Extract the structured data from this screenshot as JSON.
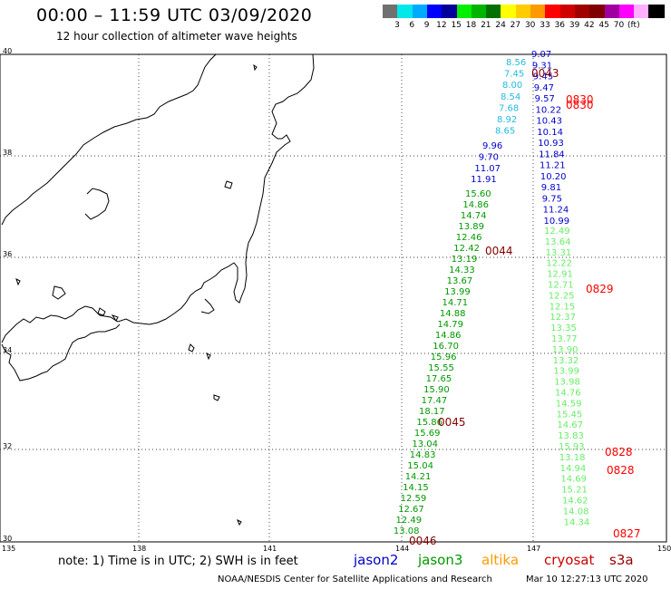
{
  "title": "00:00 – 11:59 UTC 03/09/2020",
  "subtitle": "12 hour collection of altimeter wave heights",
  "scale": {
    "unit": "(ft)",
    "colors": [
      "#707070",
      "#00e8e8",
      "#00aaff",
      "#0000ff",
      "#00009a",
      "#00ee00",
      "#00b400",
      "#007000",
      "#ffff00",
      "#ffcc00",
      "#ff9900",
      "#ff0000",
      "#d00000",
      "#a00000",
      "#800000",
      "#a000a0",
      "#ff00ff",
      "#ffb0ff",
      "#000000"
    ],
    "labels": [
      "3",
      "6",
      "9",
      "12",
      "15",
      "18",
      "21",
      "24",
      "27",
      "30",
      "33",
      "36",
      "39",
      "42",
      "45",
      "70"
    ]
  },
  "axes": {
    "lat_labels": [
      "40",
      "38",
      "36",
      "34",
      "32",
      "30"
    ],
    "lon_labels": [
      "135",
      "138",
      "141",
      "144",
      "147",
      "150"
    ]
  },
  "colors": {
    "jason2": "#0000cc",
    "jason3": "#009900",
    "altika": "#ff9900",
    "cryosat": "#cc0000",
    "s3a": "#990000",
    "altika_values": "#22bbdd",
    "track2_values": "#66ee66",
    "time_dark": "#880000",
    "time_red": "#ff0000"
  },
  "tracks": [
    {
      "name": "altika_values",
      "color": "#22bbdd",
      "values": [
        "8.56",
        "7.45",
        "8.00",
        "8.54",
        "7.68",
        "8.92",
        "8.65"
      ]
    },
    {
      "name": "jason2_upper",
      "color": "#0000cc",
      "values": [
        "9.96",
        "9.70",
        "11.07",
        "11.91"
      ]
    },
    {
      "name": "jason3_lower",
      "color": "#009900",
      "values": [
        "15.60",
        "14.86",
        "14.74",
        "13.89",
        "12.46",
        "12.42",
        "13.19",
        "14.33",
        "13.67",
        "13.99",
        "14.71",
        "14.88",
        "14.79",
        "14.86",
        "16.70",
        "15.96",
        "15.55",
        "17.65",
        "15.90",
        "17.47",
        "18.17",
        "15.86",
        "15.69",
        "13.04",
        "14.83",
        "15.04",
        "14.21",
        "14.15",
        "12.59",
        "12.67",
        "12.49",
        "13.08"
      ]
    },
    {
      "name": "jason2_right",
      "color": "#0000cc",
      "values": [
        "9.07",
        "9.31",
        "9.45",
        "9.47",
        "9.57",
        "10.22",
        "10.43",
        "10.14",
        "10.93",
        "11.84",
        "11.21",
        "10.20",
        "9.81",
        "9.75",
        "11.24",
        "10.99"
      ]
    },
    {
      "name": "green_right",
      "color": "#66ee66",
      "values": [
        "12.49",
        "13.64",
        "13.31",
        "12.22",
        "12.91",
        "12.71",
        "12.25",
        "12.15",
        "12.37",
        "13.35",
        "13.77",
        "13.90",
        "13.32",
        "13.99",
        "13.98",
        "14.76",
        "14.59",
        "15.45",
        "14.67",
        "13.83",
        "15.93",
        "13.18",
        "14.94",
        "14.69",
        "15.21",
        "14.62",
        "14.08",
        "14.34"
      ]
    }
  ],
  "times": [
    {
      "label": "0043",
      "color": "#880000"
    },
    {
      "label": "0830",
      "color": "#ff0000"
    },
    {
      "label": "0830",
      "color": "#ff0000"
    },
    {
      "label": "0044",
      "color": "#880000"
    },
    {
      "label": "0829",
      "color": "#ff0000"
    },
    {
      "label": "0045",
      "color": "#880000"
    },
    {
      "label": "0828",
      "color": "#ff0000"
    },
    {
      "label": "0828",
      "color": "#ff0000"
    },
    {
      "label": "0827",
      "color": "#ff0000"
    },
    {
      "label": "0046",
      "color": "#880000"
    }
  ],
  "footer": {
    "note": "note: 1) Time is in UTC; 2) SWH is in feet",
    "satellites": [
      {
        "label": "jason2",
        "color": "#0000cc"
      },
      {
        "label": "jason3",
        "color": "#009900"
      },
      {
        "label": "altika",
        "color": "#ff9900"
      },
      {
        "label": "cryosat",
        "color": "#cc0000"
      },
      {
        "label": "s3a",
        "color": "#990000"
      }
    ],
    "credit": "NOAA/NESDIS Center for Satellite Applications and Research",
    "timestamp": "Mar 10 12:27:13 UTC 2020"
  }
}
